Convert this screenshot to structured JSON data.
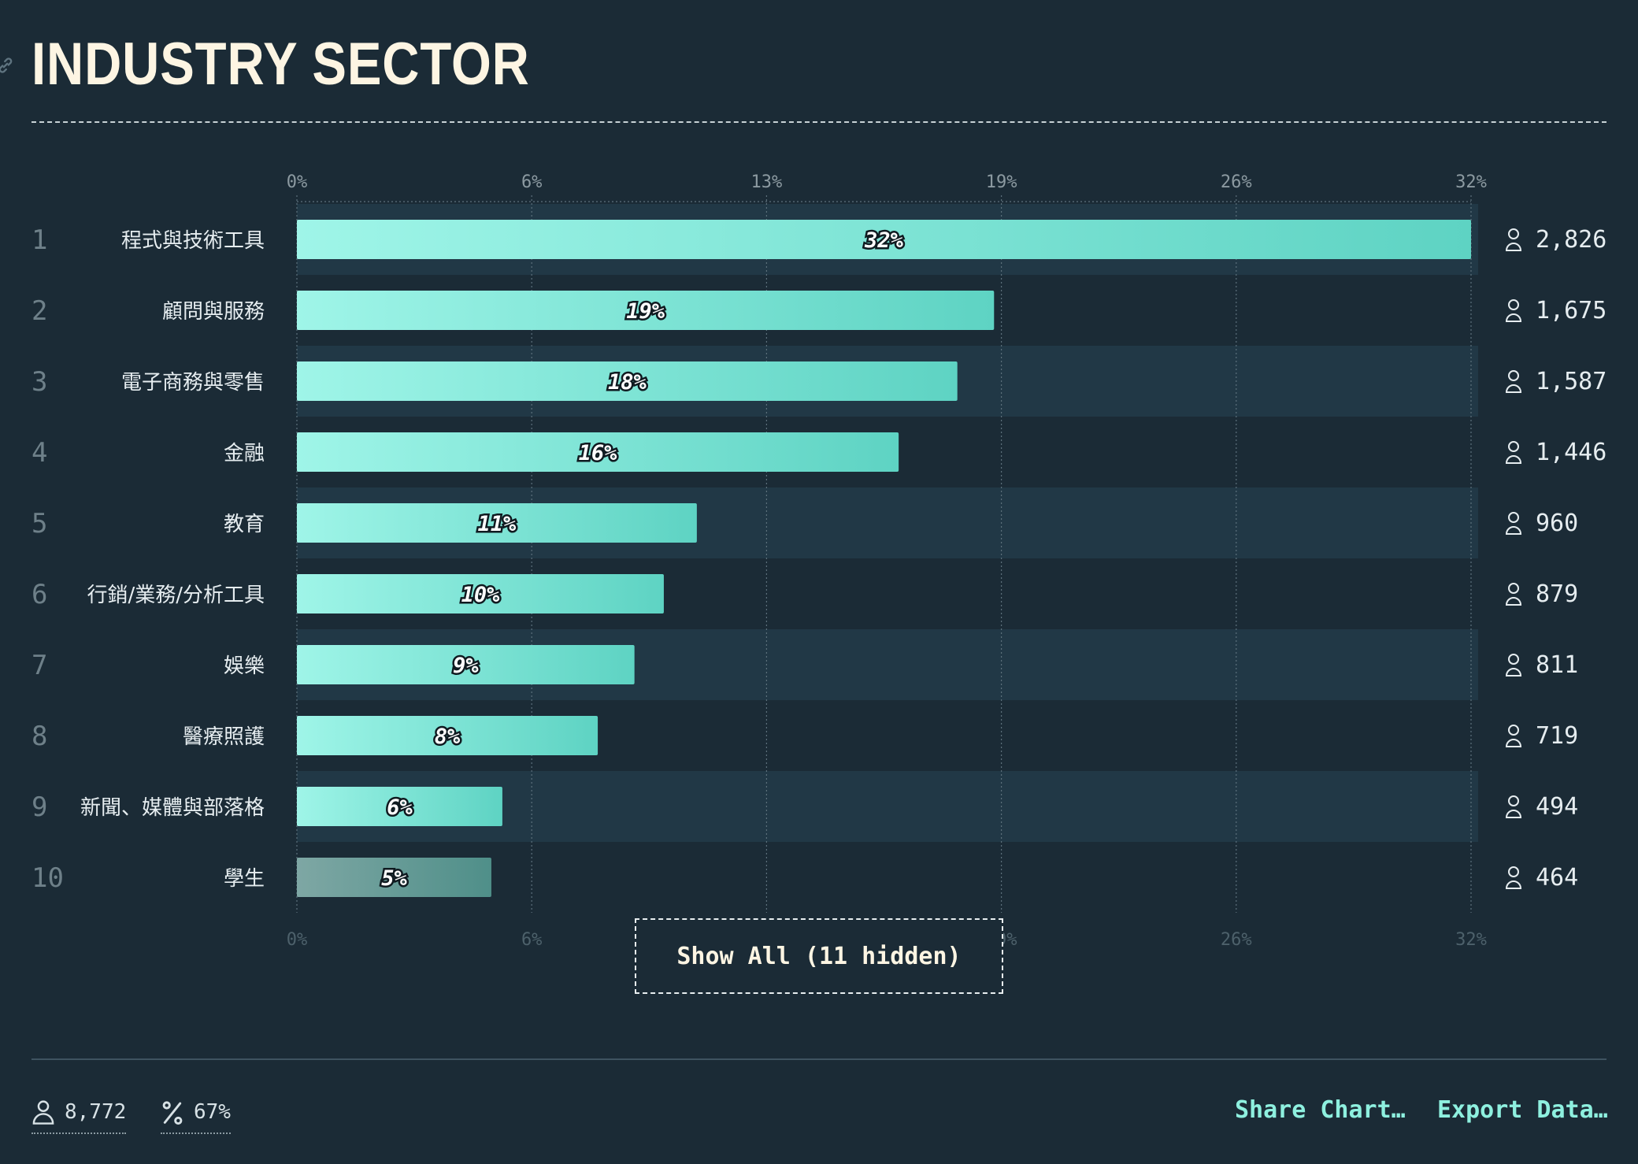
{
  "title": "INDUSTRY SECTOR",
  "show_all_label": "Show All (11 hidden)",
  "footer": {
    "respondents": "8,772",
    "percent": "67%",
    "share_label": "Share Chart…",
    "export_label": "Export Data…"
  },
  "colors": {
    "background": "#1b2b36",
    "bar_start": "#9ff5e8",
    "bar_end": "#5ed3c3",
    "title": "#fdf5e3",
    "accent": "#8ef0df"
  },
  "icons": {
    "header": "link-icon",
    "count": "person-icon",
    "percent": "percent-icon"
  },
  "chart_data": {
    "type": "bar",
    "orientation": "horizontal",
    "title": "INDUSTRY SECTOR",
    "xlim": [
      0,
      32
    ],
    "x_ticks": [
      "0%",
      "6%",
      "13%",
      "19%",
      "26%",
      "32%"
    ],
    "x_tick_values": [
      0,
      6.4,
      12.8,
      19.2,
      25.6,
      32
    ],
    "grid": true,
    "rows": [
      {
        "rank": "1",
        "label": "程式與技術工具",
        "value": 32,
        "value_label": "32%",
        "count": "2,826"
      },
      {
        "rank": "2",
        "label": "顧問與服務",
        "value": 19,
        "value_label": "19%",
        "count": "1,675"
      },
      {
        "rank": "3",
        "label": "電子商務與零售",
        "value": 18,
        "value_label": "18%",
        "count": "1,587"
      },
      {
        "rank": "4",
        "label": "金融",
        "value": 16.4,
        "value_label": "16%",
        "count": "1,446"
      },
      {
        "rank": "5",
        "label": "教育",
        "value": 10.9,
        "value_label": "11%",
        "count": "960"
      },
      {
        "rank": "6",
        "label": "行銷/業務/分析工具",
        "value": 10,
        "value_label": "10%",
        "count": "879"
      },
      {
        "rank": "7",
        "label": "娛樂",
        "value": 9.2,
        "value_label": "9%",
        "count": "811"
      },
      {
        "rank": "8",
        "label": "醫療照護",
        "value": 8.2,
        "value_label": "8%",
        "count": "719"
      },
      {
        "rank": "9",
        "label": "新聞、媒體與部落格",
        "value": 5.6,
        "value_label": "6%",
        "count": "494"
      },
      {
        "rank": "10",
        "label": "學生",
        "value": 5.3,
        "value_label": "5%",
        "count": "464",
        "muted": true
      }
    ]
  }
}
